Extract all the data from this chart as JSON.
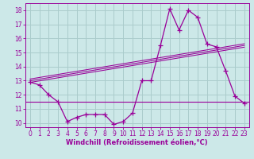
{
  "xlabel": "Windchill (Refroidissement éolien,°C)",
  "bg_color": "#cce8e8",
  "grid_color": "#aacccc",
  "line_color": "#990099",
  "x": [
    0,
    1,
    2,
    3,
    4,
    5,
    6,
    7,
    8,
    9,
    10,
    11,
    12,
    13,
    14,
    15,
    16,
    17,
    18,
    19,
    20,
    21,
    22,
    23
  ],
  "y_main": [
    12.9,
    12.7,
    12.0,
    11.5,
    10.1,
    10.4,
    10.6,
    10.6,
    10.6,
    9.9,
    10.1,
    10.7,
    13.0,
    13.0,
    15.5,
    18.1,
    16.6,
    18.0,
    17.5,
    15.6,
    15.4,
    13.7,
    11.9,
    11.4
  ],
  "y_trend_start": 13.0,
  "y_trend_end": 15.5,
  "y_hline": 11.5,
  "ylim": [
    9.7,
    18.5
  ],
  "xlim": [
    -0.5,
    23.5
  ],
  "yticks": [
    10,
    11,
    12,
    13,
    14,
    15,
    16,
    17,
    18
  ],
  "xticks": [
    0,
    1,
    2,
    3,
    4,
    5,
    6,
    7,
    8,
    9,
    10,
    11,
    12,
    13,
    14,
    15,
    16,
    17,
    18,
    19,
    20,
    21,
    22,
    23
  ]
}
